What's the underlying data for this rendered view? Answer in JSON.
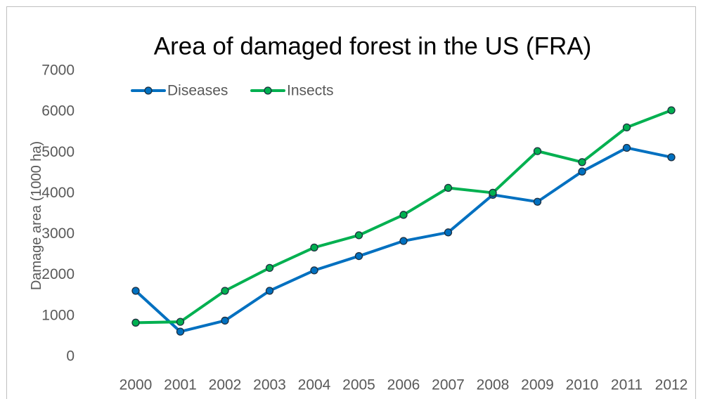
{
  "chart_data": {
    "type": "line",
    "title": "Area of damaged forest in the US (FRA)",
    "xlabel": "",
    "ylabel": "Damage area (1000 ha)",
    "categories": [
      "2000",
      "2001",
      "2002",
      "2003",
      "2004",
      "2005",
      "2006",
      "2007",
      "2008",
      "2009",
      "2010",
      "2011",
      "2012"
    ],
    "ylim": [
      0,
      7000
    ],
    "yticks": [
      "0",
      "1000",
      "2000",
      "3000",
      "4000",
      "5000",
      "6000",
      "7000"
    ],
    "grid": false,
    "legend": "top-left",
    "series": [
      {
        "name": "Diseases",
        "color": "#0070C0",
        "values": [
          1600,
          600,
          870,
          1600,
          2100,
          2450,
          2820,
          3030,
          3950,
          3780,
          4520,
          5100,
          4870
        ]
      },
      {
        "name": "Insects",
        "color": "#00B050",
        "values": [
          820,
          840,
          1600,
          2160,
          2660,
          2960,
          3460,
          4120,
          4000,
          5020,
          4750,
          5600,
          6020
        ]
      }
    ]
  }
}
